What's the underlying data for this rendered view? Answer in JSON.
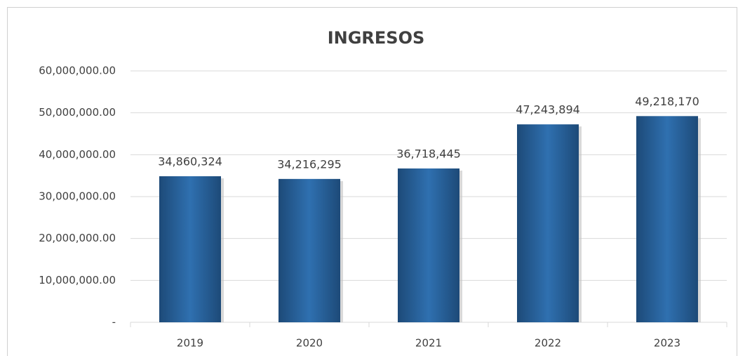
{
  "chart_data": {
    "type": "bar",
    "title": "INGRESOS",
    "categories": [
      "2019",
      "2020",
      "2021",
      "2022",
      "2023"
    ],
    "values": [
      34860324,
      34216295,
      36718445,
      47243894,
      49218170
    ],
    "value_labels": [
      "34,860,324",
      "34,216,295",
      "36,718,445",
      "47,243,894",
      "49,218,170"
    ],
    "color": "#2a64a0",
    "ylim": [
      0,
      60000000
    ],
    "yticks": [
      {
        "value": 0,
        "label": "-"
      },
      {
        "value": 10000000,
        "label": "10,000,000.00"
      },
      {
        "value": 20000000,
        "label": "20,000,000.00"
      },
      {
        "value": 30000000,
        "label": "30,000,000.00"
      },
      {
        "value": 40000000,
        "label": "40,000,000.00"
      },
      {
        "value": 50000000,
        "label": "50,000,000.00"
      },
      {
        "value": 60000000,
        "label": "60,000,000.00"
      }
    ],
    "grid": true
  }
}
